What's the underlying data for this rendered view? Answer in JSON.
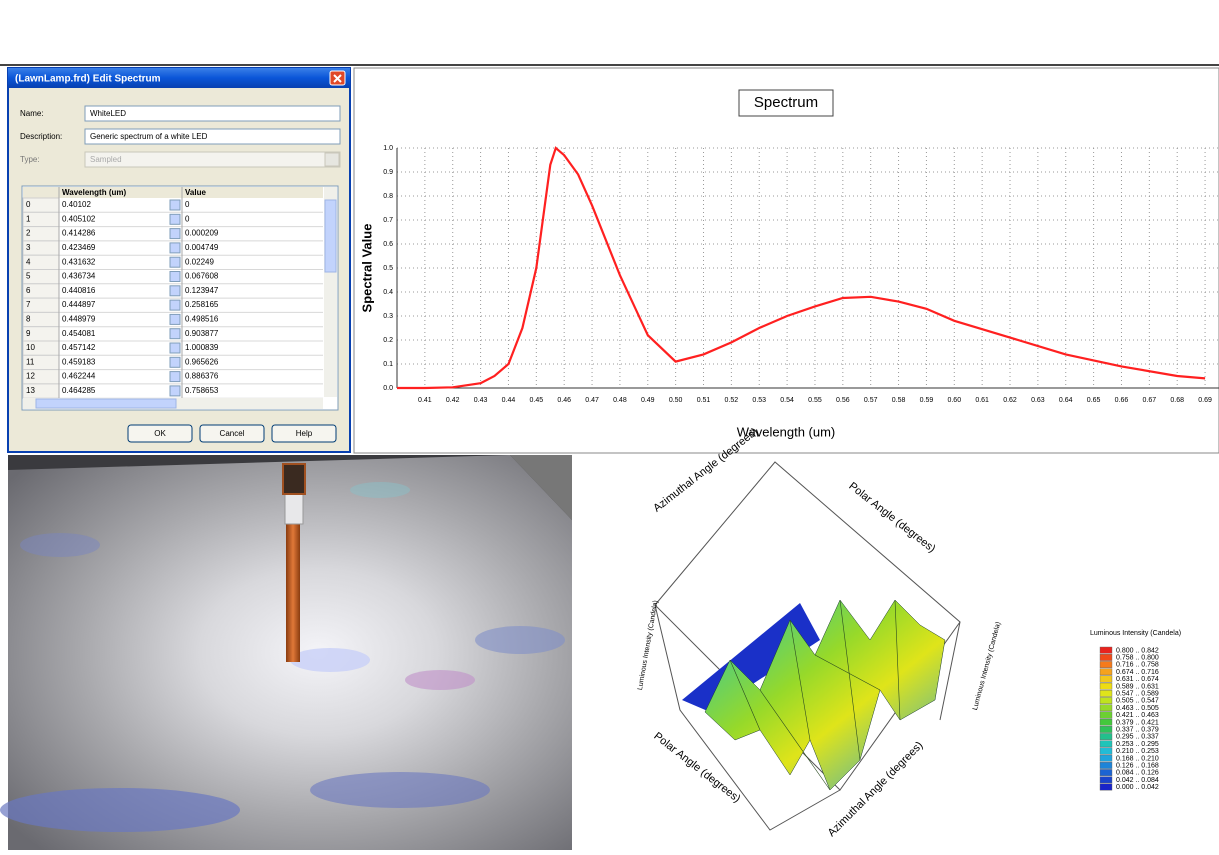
{
  "dialog": {
    "title": "(LawnLamp.frd) Edit Spectrum",
    "name_label": "Name:",
    "name_value": "WhiteLED",
    "description_label": "Description:",
    "description_value": "Generic spectrum of a white LED",
    "type_label": "Type:",
    "type_value": "Sampled",
    "table": {
      "headers": [
        "Wavelength (um)",
        "Value"
      ],
      "rows": [
        [
          "0",
          "0.40102",
          "0"
        ],
        [
          "1",
          "0.405102",
          "0"
        ],
        [
          "2",
          "0.414286",
          "0.000209"
        ],
        [
          "3",
          "0.423469",
          "0.004749"
        ],
        [
          "4",
          "0.431632",
          "0.02249"
        ],
        [
          "5",
          "0.436734",
          "0.067608"
        ],
        [
          "6",
          "0.440816",
          "0.123947"
        ],
        [
          "7",
          "0.444897",
          "0.258165"
        ],
        [
          "8",
          "0.448979",
          "0.498516"
        ],
        [
          "9",
          "0.454081",
          "0.903877"
        ],
        [
          "10",
          "0.457142",
          "1.000839"
        ],
        [
          "11",
          "0.459183",
          "0.965626"
        ],
        [
          "12",
          "0.462244",
          "0.886376"
        ],
        [
          "13",
          "0.464285",
          "0.758653"
        ]
      ]
    },
    "buttons": [
      "OK",
      "Cancel",
      "Help"
    ]
  },
  "chart_data": {
    "type": "line",
    "title": "Spectrum",
    "x_label": "Wavelength (um)",
    "y_label": "Spectral Value",
    "color": "#ff2020",
    "grid": true,
    "x": [
      0.4,
      0.41,
      0.42,
      0.43,
      0.435,
      0.44,
      0.445,
      0.45,
      0.455,
      0.457,
      0.46,
      0.465,
      0.47,
      0.48,
      0.49,
      0.5,
      0.51,
      0.52,
      0.53,
      0.54,
      0.55,
      0.56,
      0.57,
      0.58,
      0.59,
      0.6,
      0.62,
      0.64,
      0.66,
      0.68,
      0.69
    ],
    "values": [
      0,
      0,
      0.003,
      0.02,
      0.05,
      0.1,
      0.25,
      0.5,
      0.93,
      1.0,
      0.97,
      0.89,
      0.76,
      0.47,
      0.22,
      0.11,
      0.14,
      0.19,
      0.25,
      0.3,
      0.34,
      0.375,
      0.38,
      0.36,
      0.33,
      0.28,
      0.21,
      0.14,
      0.09,
      0.05,
      0.04
    ],
    "xlim": [
      0.4,
      0.695
    ],
    "ylim": [
      0,
      1.0
    ],
    "xticks": [
      0.41,
      0.42,
      0.43,
      0.44,
      0.45,
      0.46,
      0.47,
      0.48,
      0.49,
      {
        "value": 0.5,
        "label": "0.50"
      },
      0.51,
      0.52,
      0.53,
      0.54,
      0.55,
      0.56,
      0.57,
      0.58,
      0.59,
      {
        "value": 0.6,
        "label": "0.60"
      },
      0.61,
      0.62,
      0.63,
      0.64,
      0.65,
      0.66,
      0.67,
      0.68,
      0.69
    ],
    "yticks": [
      {
        "value": 0,
        "label": "0.0"
      },
      0.1,
      0.2,
      0.3,
      0.4,
      0.5,
      0.6,
      0.7,
      0.8,
      0.9,
      {
        "value": 1,
        "label": "1.0"
      }
    ]
  },
  "surface_plot": {
    "axis_labels": [
      "Azimuthal Angle (degrees)",
      "Polar Angle (degrees)",
      "Luminous Intensity (Candela)",
      "Polar Angle (degrees)",
      "Azimuthal Angle (degrees)",
      "Luminous Intensity (Candela)"
    ],
    "legend_title": "Luminous Intensity (Candela)",
    "legend": [
      {
        "label": "0.800 .. 0.842",
        "color": "#e8231e"
      },
      {
        "label": "0.758 .. 0.800",
        "color": "#f04a1a"
      },
      {
        "label": "0.716 .. 0.758",
        "color": "#f57a1c"
      },
      {
        "label": "0.674 .. 0.716",
        "color": "#f5a21e"
      },
      {
        "label": "0.631 .. 0.674",
        "color": "#f2c81c"
      },
      {
        "label": "0.589 .. 0.631",
        "color": "#eedc14"
      },
      {
        "label": "0.547 .. 0.589",
        "color": "#dfe41a"
      },
      {
        "label": "0.505 .. 0.547",
        "color": "#bfe31e"
      },
      {
        "label": "0.463 .. 0.505",
        "color": "#96d92a"
      },
      {
        "label": "0.421 .. 0.463",
        "color": "#6cd032"
      },
      {
        "label": "0.379 .. 0.421",
        "color": "#44c83c"
      },
      {
        "label": "0.337 .. 0.379",
        "color": "#2ec25a"
      },
      {
        "label": "0.295 .. 0.337",
        "color": "#22c08c"
      },
      {
        "label": "0.253 .. 0.295",
        "color": "#20c4b8"
      },
      {
        "label": "0.210 .. 0.253",
        "color": "#22bcd6"
      },
      {
        "label": "0.168 .. 0.210",
        "color": "#20a4dc"
      },
      {
        "label": "0.126 .. 0.168",
        "color": "#1e84d8"
      },
      {
        "label": "0.084 .. 0.126",
        "color": "#1c64d2"
      },
      {
        "label": "0.042 .. 0.084",
        "color": "#1a44cc"
      },
      {
        "label": "0.000 .. 0.042",
        "color": "#1a24c8"
      }
    ]
  }
}
